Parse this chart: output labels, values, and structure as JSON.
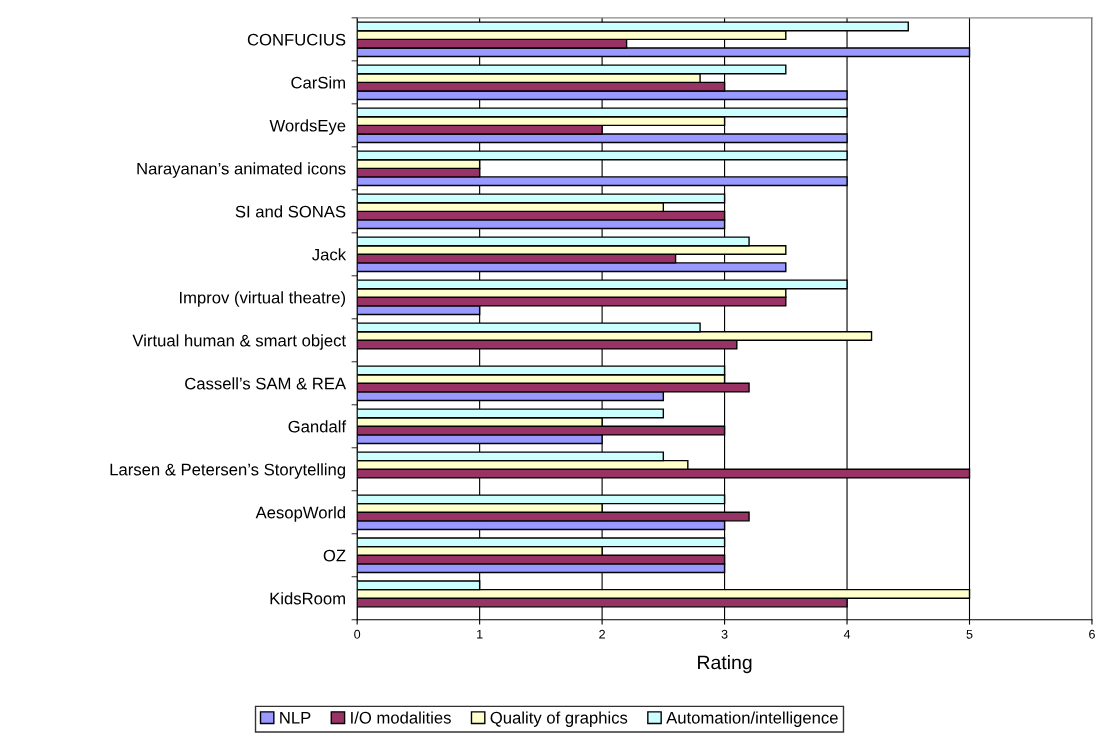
{
  "chart_data": {
    "type": "bar",
    "orientation": "horizontal",
    "xlabel": "Rating",
    "categories": [
      "CONFUCIUS",
      "CarSim",
      "WordsEye",
      "Narayanan’s animated icons",
      "SI and SONAS",
      "Jack",
      "Improv (virtual theatre)",
      "Virtual human & smart object",
      "Cassell’s SAM & REA",
      "Gandalf",
      "Larsen & Petersen’s Storytelling",
      "AesopWorld",
      "OZ",
      "KidsRoom"
    ],
    "series": [
      {
        "name": "NLP",
        "color": "#9999ff",
        "values": [
          5,
          4,
          4,
          4,
          3,
          3.5,
          1,
          null,
          2.5,
          2,
          null,
          3,
          3,
          null
        ]
      },
      {
        "name": "I/O modalities",
        "color": "#993366",
        "values": [
          2.2,
          3,
          2,
          1,
          3,
          2.6,
          3.5,
          3.1,
          3.2,
          3,
          5,
          3.2,
          3,
          4
        ]
      },
      {
        "name": "Quality of graphics",
        "color": "#ffffcc",
        "values": [
          3.5,
          2.8,
          3,
          1,
          2.5,
          3.5,
          3.5,
          4.2,
          3,
          2,
          2.7,
          2,
          2,
          5
        ]
      },
      {
        "name": "Automation/intelligence",
        "color": "#ccffff",
        "values": [
          4.5,
          3.5,
          4,
          4,
          3,
          3.2,
          4,
          2.8,
          3,
          2.5,
          2.5,
          3,
          3,
          1
        ]
      }
    ],
    "xlim": [
      0,
      6
    ],
    "xticks": [
      0,
      1,
      2,
      3,
      4,
      5,
      6
    ],
    "grid": "x",
    "legend": "bottom"
  }
}
